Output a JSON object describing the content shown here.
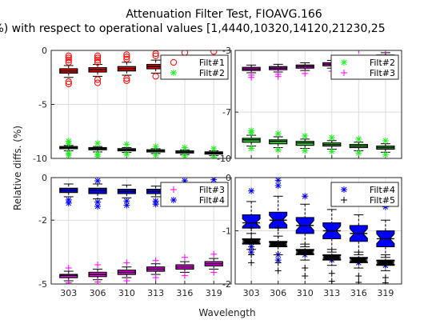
{
  "figure": {
    "title_line1": "Attenuation Filter Test, FIOAVG.166",
    "title_line2": "(%) with respect to operational values [1,4440,10320,14120,21230,25",
    "shared_ylabel": "Relative diffs. (%)",
    "shared_xlabel": "Wavelength"
  },
  "colors": {
    "red": "#ff0000",
    "green": "#22ee22",
    "magenta": "#ff00ff",
    "blue": "#0000ff",
    "black": "#000000"
  },
  "chart_data": [
    {
      "type": "box",
      "panel": "top-left",
      "categories": [
        "303",
        "306",
        "310",
        "313",
        "316",
        "319"
      ],
      "ylim": [
        -10,
        0
      ],
      "yticks": [
        "0",
        "-5",
        "-10"
      ],
      "ytick_values": [
        0,
        -5,
        -10
      ],
      "legend": {
        "placement": "top-right"
      },
      "series": [
        {
          "name": "Filt#1",
          "color": "#ff0000",
          "marker": "o",
          "boxes": [
            {
              "median": -1.9,
              "q1": -2.1,
              "q3": -1.7,
              "whislo": -2.5,
              "whishi": -1.4,
              "fliers": [
                -0.5,
                -0.7,
                -0.9,
                -1.1,
                -2.9,
                -3.1
              ]
            },
            {
              "median": -1.8,
              "q1": -2.0,
              "q3": -1.6,
              "whislo": -2.4,
              "whishi": -1.3,
              "fliers": [
                -0.5,
                -0.7,
                -0.9,
                -1.1,
                -2.7,
                -3.0
              ]
            },
            {
              "median": -1.7,
              "q1": -1.9,
              "q3": -1.5,
              "whislo": -2.3,
              "whishi": -1.1,
              "fliers": [
                -0.4,
                -0.6,
                -0.8,
                -2.6,
                -2.8
              ]
            },
            {
              "median": -1.5,
              "q1": -1.7,
              "q3": -1.3,
              "whislo": -2.1,
              "whishi": -0.9,
              "fliers": [
                -0.3,
                -0.5,
                -2.4
              ]
            },
            {
              "median": -1.2,
              "q1": -1.4,
              "q3": -1.0,
              "whislo": -1.8,
              "whishi": -0.7,
              "fliers": [
                -0.2,
                -2.1
              ]
            },
            {
              "median": -1.0,
              "q1": -1.2,
              "q3": -0.8,
              "whislo": -1.6,
              "whishi": -0.5,
              "fliers": [
                -0.1,
                -1.9
              ]
            }
          ]
        },
        {
          "name": "Filt#2",
          "color": "#22ee22",
          "marker": "*",
          "boxes": [
            {
              "median": -9.0,
              "q1": -9.1,
              "q3": -8.9,
              "whislo": -9.3,
              "whishi": -8.8,
              "fliers": [
                -8.4,
                -8.6,
                -9.5,
                -9.7
              ]
            },
            {
              "median": -9.1,
              "q1": -9.2,
              "q3": -9.0,
              "whislo": -9.4,
              "whishi": -8.9,
              "fliers": [
                -8.6,
                -9.6,
                -9.8
              ]
            },
            {
              "median": -9.2,
              "q1": -9.3,
              "q3": -9.1,
              "whislo": -9.45,
              "whishi": -9.0,
              "fliers": [
                -8.7,
                -9.6
              ]
            },
            {
              "median": -9.3,
              "q1": -9.4,
              "q3": -9.2,
              "whislo": -9.55,
              "whishi": -9.1,
              "fliers": [
                -8.9,
                -9.7
              ]
            },
            {
              "median": -9.4,
              "q1": -9.5,
              "q3": -9.3,
              "whislo": -9.65,
              "whishi": -9.2,
              "fliers": [
                -9.0,
                -9.8
              ]
            },
            {
              "median": -9.5,
              "q1": -9.6,
              "q3": -9.4,
              "whislo": -9.75,
              "whishi": -9.3,
              "fliers": [
                -9.1,
                -9.9
              ]
            }
          ]
        }
      ]
    },
    {
      "type": "box",
      "panel": "top-right",
      "categories": [
        "303",
        "306",
        "310",
        "313",
        "316",
        "319"
      ],
      "ylim": [
        -10,
        -3
      ],
      "yticks": [
        "-3",
        "-7",
        "-10"
      ],
      "ytick_values": [
        -3,
        -7,
        -10
      ],
      "legend": {
        "placement": "top-right"
      },
      "series": [
        {
          "name": "Filt#2",
          "color": "#22ee22",
          "marker": "*",
          "boxes": [
            {
              "median": -8.8,
              "q1": -8.95,
              "q3": -8.7,
              "whislo": -9.2,
              "whishi": -8.5,
              "fliers": [
                -8.2,
                -8.35,
                -9.35
              ]
            },
            {
              "median": -8.9,
              "q1": -9.05,
              "q3": -8.8,
              "whislo": -9.3,
              "whishi": -8.6,
              "fliers": [
                -8.4,
                -9.45
              ]
            },
            {
              "median": -9.0,
              "q1": -9.15,
              "q3": -8.9,
              "whislo": -9.35,
              "whishi": -8.75,
              "fliers": [
                -8.55,
                -9.5
              ]
            },
            {
              "median": -9.1,
              "q1": -9.2,
              "q3": -9.0,
              "whislo": -9.4,
              "whishi": -8.85,
              "fliers": [
                -8.65,
                -9.55
              ]
            },
            {
              "median": -9.2,
              "q1": -9.3,
              "q3": -9.1,
              "whislo": -9.5,
              "whishi": -8.95,
              "fliers": [
                -8.75,
                -9.65
              ]
            },
            {
              "median": -9.3,
              "q1": -9.4,
              "q3": -9.2,
              "whislo": -9.6,
              "whishi": -9.05,
              "fliers": [
                -8.85,
                -9.75
              ]
            }
          ]
        },
        {
          "name": "Filt#3",
          "color": "#ff00ff",
          "marker": "+",
          "boxes": [
            {
              "median": -4.2,
              "q1": -4.3,
              "q3": -4.1,
              "whislo": -4.45,
              "whishi": -3.95,
              "fliers": [
                -4.6,
                -4.75
              ]
            },
            {
              "median": -4.15,
              "q1": -4.25,
              "q3": -4.05,
              "whislo": -4.4,
              "whishi": -3.9,
              "fliers": [
                -4.55,
                -4.7
              ]
            },
            {
              "median": -4.05,
              "q1": -4.15,
              "q3": -3.95,
              "whislo": -4.3,
              "whishi": -3.8,
              "fliers": [
                -4.5
              ]
            },
            {
              "median": -3.9,
              "q1": -4.0,
              "q3": -3.8,
              "whislo": -4.15,
              "whishi": -3.65,
              "fliers": [
                -4.35
              ]
            },
            {
              "median": -3.6,
              "q1": -3.7,
              "q3": -3.5,
              "whislo": -3.85,
              "whishi": -3.35,
              "fliers": [
                -3.0,
                -4.0
              ]
            },
            {
              "median": -3.4,
              "q1": -3.5,
              "q3": -3.3,
              "whislo": -3.65,
              "whishi": -3.15,
              "fliers": [
                -3.0,
                -3.8
              ]
            }
          ]
        }
      ]
    },
    {
      "type": "box",
      "panel": "bottom-left",
      "categories": [
        "303",
        "306",
        "310",
        "313",
        "316",
        "319"
      ],
      "ylim": [
        -5,
        0
      ],
      "yticks": [
        "0",
        "-2",
        "-5"
      ],
      "ytick_values": [
        0,
        -2,
        -5
      ],
      "legend": {
        "placement": "top-right"
      },
      "series": [
        {
          "name": "Filt#3",
          "color": "#ff00ff",
          "marker": "+",
          "boxes": [
            {
              "median": -4.6,
              "q1": -4.7,
              "q3": -4.55,
              "whislo": -4.85,
              "whishi": -4.4,
              "fliers": [
                -4.25,
                -4.95
              ]
            },
            {
              "median": -4.55,
              "q1": -4.65,
              "q3": -4.45,
              "whislo": -4.8,
              "whishi": -4.3,
              "fliers": [
                -4.1,
                -4.9
              ]
            },
            {
              "median": -4.45,
              "q1": -4.55,
              "q3": -4.35,
              "whislo": -4.7,
              "whishi": -4.2,
              "fliers": [
                -4.0,
                -4.85
              ]
            },
            {
              "median": -4.3,
              "q1": -4.4,
              "q3": -4.2,
              "whislo": -4.55,
              "whishi": -4.05,
              "fliers": [
                -3.9,
                -4.7
              ]
            },
            {
              "median": -4.2,
              "q1": -4.3,
              "q3": -4.1,
              "whislo": -4.45,
              "whishi": -3.95,
              "fliers": [
                -3.75,
                -4.6
              ]
            },
            {
              "median": -4.05,
              "q1": -4.15,
              "q3": -3.95,
              "whislo": -4.3,
              "whishi": -3.8,
              "fliers": [
                -3.6,
                -4.45
              ]
            }
          ]
        },
        {
          "name": "Filt#4",
          "color": "#0000ff",
          "marker": "*",
          "boxes": [
            {
              "median": -0.6,
              "q1": -0.7,
              "q3": -0.5,
              "whislo": -0.9,
              "whishi": -0.3,
              "fliers": [
                -1.05,
                -1.2
              ]
            },
            {
              "median": -0.6,
              "q1": -0.75,
              "q3": -0.5,
              "whislo": -1.0,
              "whishi": -0.3,
              "fliers": [
                -1.15,
                -1.35,
                -0.15
              ]
            },
            {
              "median": -0.65,
              "q1": -0.75,
              "q3": -0.55,
              "whislo": -0.95,
              "whishi": -0.35,
              "fliers": [
                -1.1,
                -1.3
              ]
            },
            {
              "median": -0.65,
              "q1": -0.75,
              "q3": -0.55,
              "whislo": -0.9,
              "whishi": -0.4,
              "fliers": [
                -1.1,
                -1.25
              ]
            },
            {
              "median": -0.6,
              "q1": -0.7,
              "q3": -0.5,
              "whislo": -0.9,
              "whishi": -0.35,
              "fliers": [
                -1.05,
                -0.15
              ]
            },
            {
              "median": -0.55,
              "q1": -0.65,
              "q3": -0.45,
              "whislo": -0.85,
              "whishi": -0.3,
              "fliers": [
                -1.05,
                -0.1
              ]
            }
          ]
        }
      ]
    },
    {
      "type": "box",
      "panel": "bottom-right",
      "notched": true,
      "categories": [
        "303",
        "306",
        "310",
        "313",
        "316",
        "319"
      ],
      "ylim": [
        -2,
        0
      ],
      "yticks": [
        "0",
        "-1",
        "-2"
      ],
      "ytick_values": [
        0,
        -1,
        -2
      ],
      "legend": {
        "placement": "top-right"
      },
      "series": [
        {
          "name": "Filt#4",
          "color": "#0000ff",
          "marker": "*",
          "boxes": [
            {
              "median": -0.85,
              "q1": -0.95,
              "q3": -0.7,
              "whislo": -1.2,
              "whishi": -0.45,
              "fliers": [
                -1.3,
                -1.4,
                -0.25
              ]
            },
            {
              "median": -0.8,
              "q1": -0.95,
              "q3": -0.65,
              "whislo": -1.25,
              "whishi": -0.35,
              "fliers": [
                -1.45,
                -1.55,
                -0.05,
                -0.15
              ]
            },
            {
              "median": -0.9,
              "q1": -1.05,
              "q3": -0.75,
              "whislo": -1.3,
              "whishi": -0.5,
              "fliers": [
                -1.45,
                -0.35
              ]
            },
            {
              "median": -1.0,
              "q1": -1.15,
              "q3": -0.85,
              "whislo": -1.4,
              "whishi": -0.6,
              "fliers": [
                -1.55
              ]
            },
            {
              "median": -1.05,
              "q1": -1.2,
              "q3": -0.9,
              "whislo": -1.45,
              "whishi": -0.7,
              "fliers": [
                -1.6,
                -0.4
              ]
            },
            {
              "median": -1.15,
              "q1": -1.3,
              "q3": -1.0,
              "whislo": -1.5,
              "whishi": -0.8,
              "fliers": [
                -1.65,
                -0.55
              ]
            }
          ]
        },
        {
          "name": "Filt#5",
          "color": "#000000",
          "marker": "+",
          "boxes": [
            {
              "median": -1.2,
              "q1": -1.25,
              "q3": -1.15,
              "whislo": -1.35,
              "whishi": -1.05,
              "fliers": [
                -1.45,
                -1.6,
                -0.95
              ]
            },
            {
              "median": -1.25,
              "q1": -1.3,
              "q3": -1.2,
              "whislo": -1.45,
              "whishi": -1.1,
              "fliers": [
                -1.6,
                -1.75,
                -0.95
              ]
            },
            {
              "median": -1.4,
              "q1": -1.45,
              "q3": -1.35,
              "whislo": -1.55,
              "whishi": -1.25,
              "fliers": [
                -1.7,
                -1.85
              ]
            },
            {
              "median": -1.5,
              "q1": -1.55,
              "q3": -1.45,
              "whislo": -1.65,
              "whishi": -1.35,
              "fliers": [
                -1.8,
                -1.95
              ]
            },
            {
              "median": -1.55,
              "q1": -1.6,
              "q3": -1.5,
              "whislo": -1.7,
              "whishi": -1.4,
              "fliers": [
                -1.85,
                -1.97
              ]
            },
            {
              "median": -1.6,
              "q1": -1.65,
              "q3": -1.55,
              "whislo": -1.75,
              "whishi": -1.45,
              "fliers": [
                -1.88,
                -1.98
              ]
            }
          ]
        }
      ]
    }
  ]
}
